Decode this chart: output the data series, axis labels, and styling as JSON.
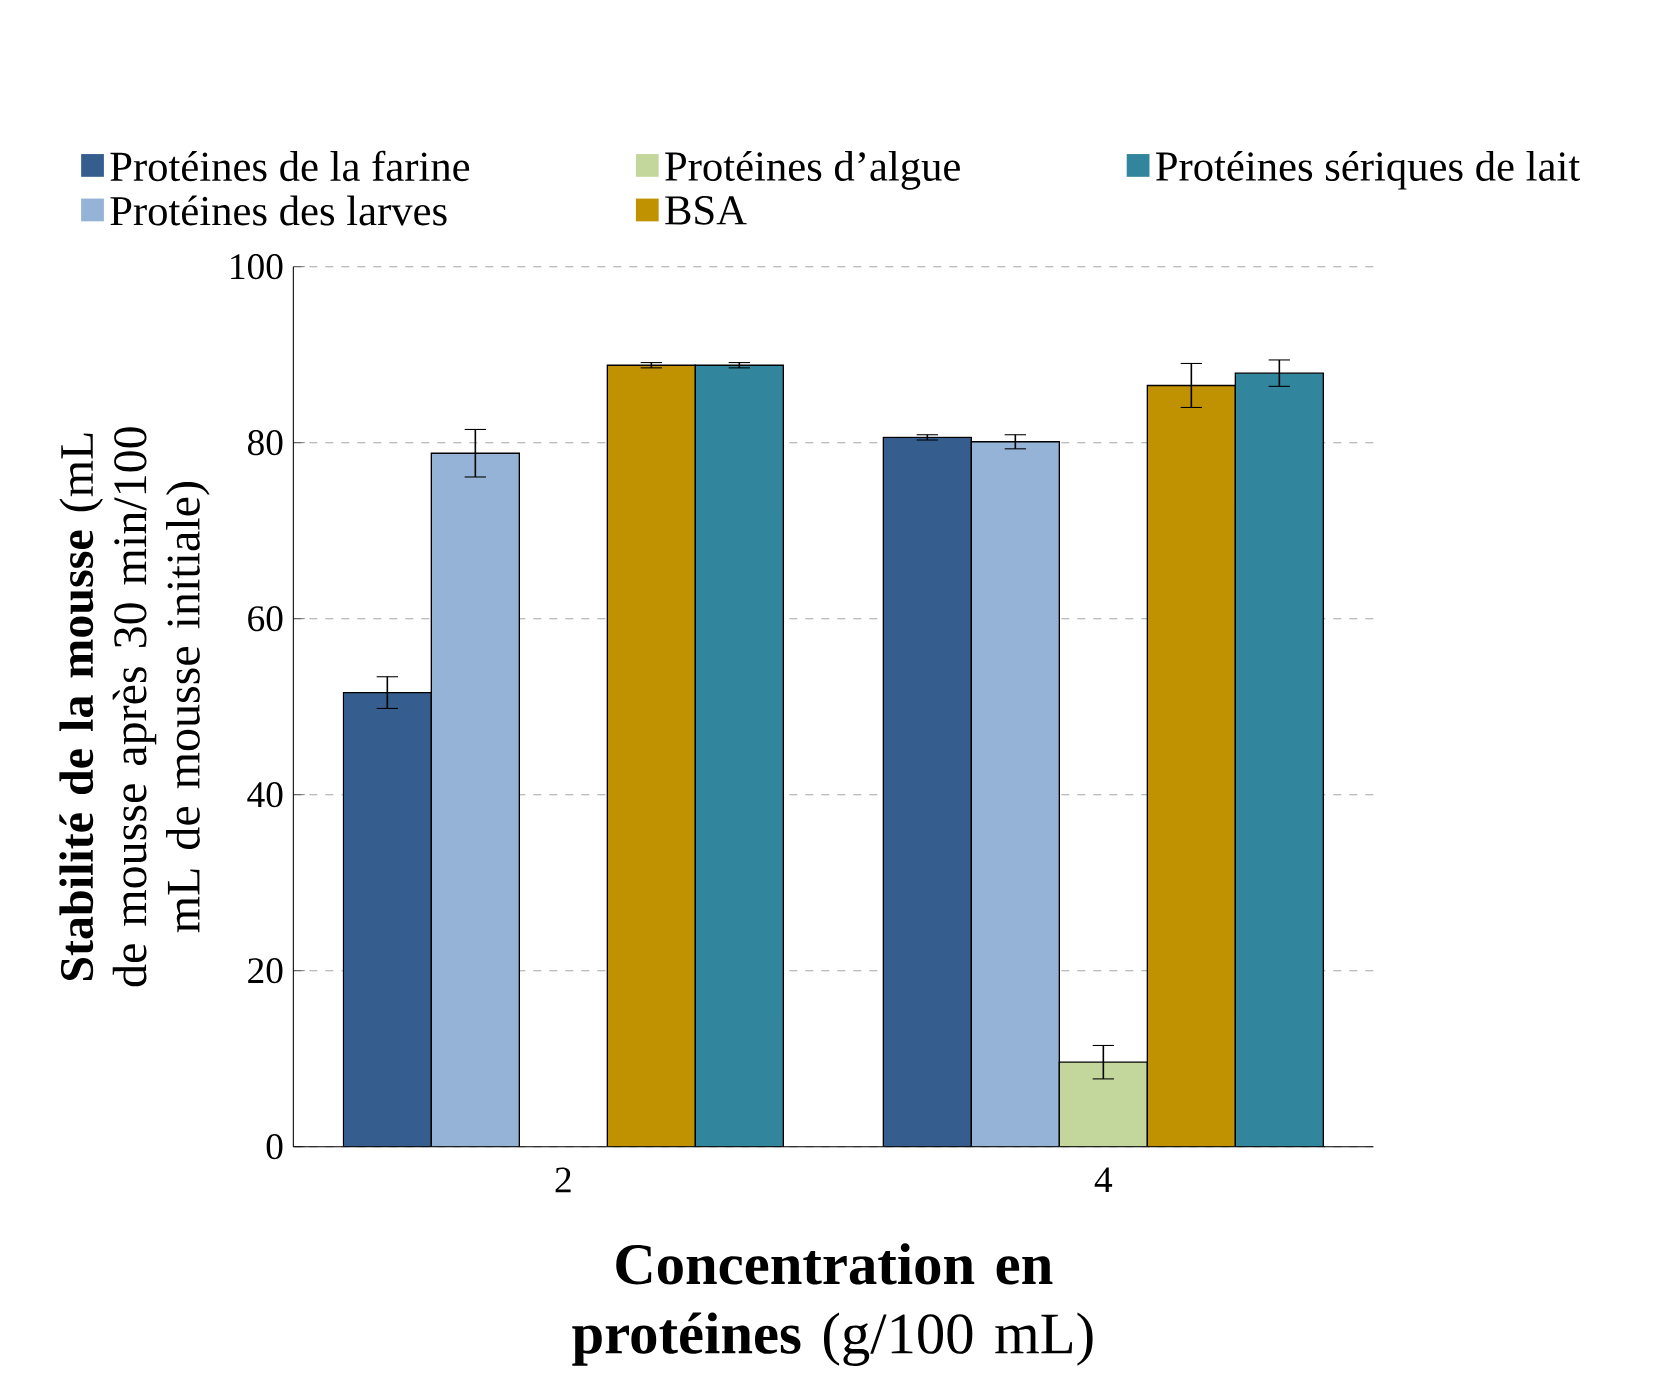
{
  "chart_data": {
    "type": "bar",
    "categories": [
      "2",
      "4"
    ],
    "xlabel": "**Concentration en protéines** (g/100 mL)",
    "ylabel": "**Stabilité de la  mousse** (mL de mousse après 30 min/100 mL de mousse initiale)",
    "series": [
      {
        "name": "Protéines de la farine",
        "color": "#355e8e",
        "values": [
          51.6,
          80.6
        ],
        "errors": [
          1.8,
          0.3
        ]
      },
      {
        "name": "Protéines des larves",
        "color": "#95b3d7",
        "values": [
          78.8,
          80.1
        ],
        "errors": [
          2.7,
          0.8
        ]
      },
      {
        "name": "Protéines d’algue",
        "color": "#c3d69b",
        "values": [
          null,
          9.6
        ],
        "errors": [
          null,
          1.9
        ]
      },
      {
        "name": "BSA",
        "color": "#c09100",
        "values": [
          88.8,
          86.5
        ],
        "errors": [
          0.3,
          2.5
        ]
      },
      {
        "name": "Protéines sériques de lait",
        "color": "#31859c",
        "values": [
          88.8,
          87.9
        ],
        "errors": [
          0.3,
          1.5
        ]
      }
    ],
    "ylim": [
      0,
      100
    ],
    "yticks": [
      0,
      20,
      40,
      60,
      80,
      100
    ],
    "grid": "y",
    "legend": "top"
  }
}
